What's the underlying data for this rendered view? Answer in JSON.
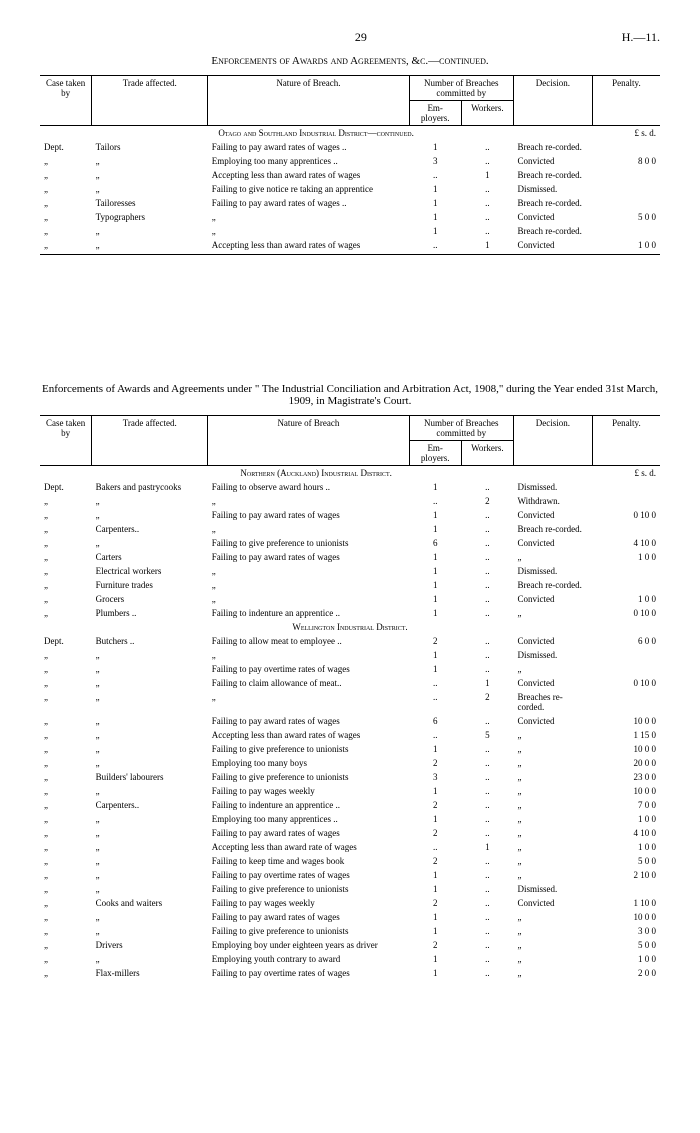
{
  "page": {
    "number": "29",
    "code": "H.—11."
  },
  "section1": {
    "title": "Enforcements of Awards and Agreements, &c.—continued.",
    "columns": {
      "case": "Case taken by",
      "trade": "Trade affected.",
      "nature": "Nature of Breach.",
      "breach_group": "Number of Breaches committed by",
      "employers": "Em-ployers.",
      "workers": "Workers.",
      "decision": "Decision.",
      "penalty": "Penalty."
    },
    "district": "Otago and Southland Industrial District—continued.",
    "currency_head": "£  s.  d.",
    "rows": [
      {
        "case": "Dept.",
        "trade": "Tailors",
        "nature": "Failing to pay award rates of wages ..",
        "emp": "1",
        "work": "..",
        "dec": "Breach re-corded.",
        "pen": ""
      },
      {
        "case": "„",
        "trade": "„",
        "nature": "Employing too many apprentices  ..",
        "emp": "3",
        "work": "..",
        "dec": "Convicted",
        "pen": "8  0  0"
      },
      {
        "case": "„",
        "trade": "„",
        "nature": "Accepting less than award rates of wages",
        "emp": "..",
        "work": "1",
        "dec": "Breach re-corded.",
        "pen": ""
      },
      {
        "case": "„",
        "trade": "„",
        "nature": "Failing to give notice re taking an apprentice",
        "emp": "1",
        "work": "..",
        "dec": "Dismissed.",
        "pen": ""
      },
      {
        "case": "„",
        "trade": "Tailoresses",
        "nature": "Failing to pay award rates of wages ..",
        "emp": "1",
        "work": "..",
        "dec": "Breach re-corded.",
        "pen": ""
      },
      {
        "case": "„",
        "trade": "Typographers",
        "nature": "„",
        "emp": "1",
        "work": "..",
        "dec": "Convicted",
        "pen": "5  0  0"
      },
      {
        "case": "„",
        "trade": "„",
        "nature": "„",
        "emp": "1",
        "work": "..",
        "dec": "Breach re-corded.",
        "pen": ""
      },
      {
        "case": "„",
        "trade": "„",
        "nature": "Accepting less than award rates of wages",
        "emp": "..",
        "work": "1",
        "dec": "Convicted",
        "pen": "1  0  0"
      }
    ]
  },
  "section2": {
    "title": "Enforcements of Awards and Agreements under \" The Industrial Conciliation and Arbitration Act, 1908,\" during the Year ended 31st March, 1909, in Magistrate's Court.",
    "columns": {
      "case": "Case taken by",
      "trade": "Trade affected.",
      "nature": "Nature of Breach",
      "breach_group": "Number of Breaches committed by",
      "employers": "Em-ployers.",
      "workers": "Workers.",
      "decision": "Decision.",
      "penalty": "Penalty."
    },
    "districts": [
      {
        "name": "Northern (Auckland) Industrial District.",
        "currency_head": "£  s.  d.",
        "rows": [
          {
            "case": "Dept.",
            "trade": "Bakers and pastrycooks",
            "nature": "Failing to observe award hours  ..",
            "emp": "1",
            "work": "..",
            "dec": "Dismissed.",
            "pen": ""
          },
          {
            "case": "„",
            "trade": "„",
            "nature": "„",
            "emp": "..",
            "work": "2",
            "dec": "Withdrawn.",
            "pen": ""
          },
          {
            "case": "„",
            "trade": "„",
            "nature": "Failing to pay award rates of wages",
            "emp": "1",
            "work": "..",
            "dec": "Convicted",
            "pen": "0 10  0"
          },
          {
            "case": "„",
            "trade": "Carpenters..",
            "nature": "„",
            "emp": "1",
            "work": "..",
            "dec": "Breach re-corded.",
            "pen": ""
          },
          {
            "case": "„",
            "trade": "„",
            "nature": "Failing to give preference to unionists",
            "emp": "6",
            "work": "..",
            "dec": "Convicted",
            "pen": "4 10  0"
          },
          {
            "case": "„",
            "trade": "Carters",
            "nature": "Failing to pay award rates of wages",
            "emp": "1",
            "work": "..",
            "dec": "„",
            "pen": "1  0  0"
          },
          {
            "case": "„",
            "trade": "Electrical workers",
            "nature": "„",
            "emp": "1",
            "work": "..",
            "dec": "Dismissed.",
            "pen": ""
          },
          {
            "case": "„",
            "trade": "Furniture trades",
            "nature": "„",
            "emp": "1",
            "work": "..",
            "dec": "Breach re-corded.",
            "pen": ""
          },
          {
            "case": "„",
            "trade": "Grocers",
            "nature": "„",
            "emp": "1",
            "work": "..",
            "dec": "Convicted",
            "pen": "1  0  0"
          },
          {
            "case": "„",
            "trade": "Plumbers ..",
            "nature": "Failing to indenture an apprentice ..",
            "emp": "1",
            "work": "..",
            "dec": "„",
            "pen": "0 10  0"
          }
        ]
      },
      {
        "name": "Wellington Industrial District.",
        "rows": [
          {
            "case": "Dept.",
            "trade": "Butchers ..",
            "nature": "Failing to allow meat to employee ..",
            "emp": "2",
            "work": "..",
            "dec": "Convicted",
            "pen": "6  0  0"
          },
          {
            "case": "„",
            "trade": "„",
            "nature": "„",
            "emp": "1",
            "work": "..",
            "dec": "Dismissed.",
            "pen": ""
          },
          {
            "case": "„",
            "trade": "„",
            "nature": "Failing to pay overtime rates of wages",
            "emp": "1",
            "work": "..",
            "dec": "„",
            "pen": ""
          },
          {
            "case": "„",
            "trade": "„",
            "nature": "Failing to claim allowance of meat..",
            "emp": "..",
            "work": "1",
            "dec": "Convicted",
            "pen": "0 10  0"
          },
          {
            "case": "„",
            "trade": "„",
            "nature": "„",
            "emp": "..",
            "work": "2",
            "dec": "Breaches re-corded.",
            "pen": ""
          },
          {
            "case": "„",
            "trade": "„",
            "nature": "Failing to pay award rates of wages",
            "emp": "6",
            "work": "..",
            "dec": "Convicted",
            "pen": "10  0  0"
          },
          {
            "case": "„",
            "trade": "„",
            "nature": "Accepting less than award rates of wages",
            "emp": "..",
            "work": "5",
            "dec": "„",
            "pen": "1 15  0"
          },
          {
            "case": "„",
            "trade": "„",
            "nature": "Failing to give preference to unionists",
            "emp": "1",
            "work": "..",
            "dec": "„",
            "pen": "10  0  0"
          },
          {
            "case": "„",
            "trade": "„",
            "nature": "Employing too many boys",
            "emp": "2",
            "work": "..",
            "dec": "„",
            "pen": "20  0  0"
          },
          {
            "case": "„",
            "trade": "Builders' labourers",
            "nature": "Failing to give preference to unionists",
            "emp": "3",
            "work": "..",
            "dec": "„",
            "pen": "23  0  0"
          },
          {
            "case": "„",
            "trade": "„",
            "nature": "Failing to pay wages weekly",
            "emp": "1",
            "work": "..",
            "dec": "„",
            "pen": "10  0  0"
          },
          {
            "case": "„",
            "trade": "Carpenters..",
            "nature": "Failing to indenture an apprentice ..",
            "emp": "2",
            "work": "..",
            "dec": "„",
            "pen": "7  0  0"
          },
          {
            "case": "„",
            "trade": "„",
            "nature": "Employing too many apprentices ..",
            "emp": "1",
            "work": "..",
            "dec": "„",
            "pen": "1  0  0"
          },
          {
            "case": "„",
            "trade": "„",
            "nature": "Failing to pay award rates of wages",
            "emp": "2",
            "work": "..",
            "dec": "„",
            "pen": "4 10  0"
          },
          {
            "case": "„",
            "trade": "„",
            "nature": "Accepting less than award rate of wages",
            "emp": "..",
            "work": "1",
            "dec": "„",
            "pen": "1  0  0"
          },
          {
            "case": "„",
            "trade": "„",
            "nature": "Failing to keep time and wages book",
            "emp": "2",
            "work": "..",
            "dec": "„",
            "pen": "5  0  0"
          },
          {
            "case": "„",
            "trade": "„",
            "nature": "Failing to pay overtime rates of wages",
            "emp": "1",
            "work": "..",
            "dec": "„",
            "pen": "2 10  0"
          },
          {
            "case": "„",
            "trade": "„",
            "nature": "Failing to give preference to unionists",
            "emp": "1",
            "work": "..",
            "dec": "Dismissed.",
            "pen": ""
          },
          {
            "case": "„",
            "trade": "Cooks and waiters",
            "nature": "Failing to pay wages weekly",
            "emp": "2",
            "work": "..",
            "dec": "Convicted",
            "pen": "1 10  0"
          },
          {
            "case": "„",
            "trade": "„",
            "nature": "Failing to pay award rates of wages",
            "emp": "1",
            "work": "..",
            "dec": "„",
            "pen": "10  0  0"
          },
          {
            "case": "„",
            "trade": "„",
            "nature": "Failing to give preference to unionists",
            "emp": "1",
            "work": "..",
            "dec": "„",
            "pen": "3  0  0"
          },
          {
            "case": "„",
            "trade": "Drivers",
            "nature": "Employing boy under eighteen years as driver",
            "emp": "2",
            "work": "..",
            "dec": "„",
            "pen": "5  0  0"
          },
          {
            "case": "„",
            "trade": "„",
            "nature": "Employing youth contrary to award",
            "emp": "1",
            "work": "..",
            "dec": "„",
            "pen": "1  0  0"
          },
          {
            "case": "„",
            "trade": "Flax-millers",
            "nature": "Failing to pay overtime rates of wages",
            "emp": "1",
            "work": "..",
            "dec": "„",
            "pen": "2  0  0"
          }
        ]
      }
    ]
  }
}
